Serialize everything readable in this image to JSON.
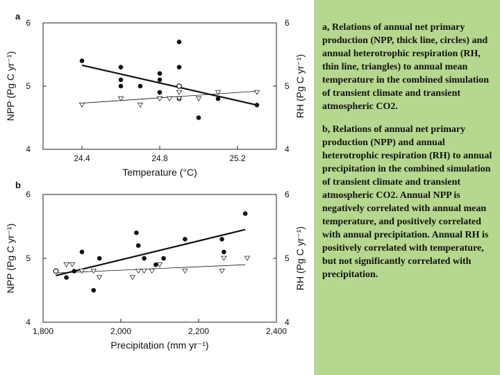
{
  "caption": {
    "paragraph_a": "a, Relations of annual net primary production (NPP, thick line, circles) and annual heterotrophic respiration (RH, thin line, triangles) to annual mean temperature in the combined simulation of transient climate and transient atmospheric CO2.",
    "paragraph_b": "b, Relations of annual net primary production (NPP) and annual heterotrophic respiration (RH) to annual precipitation in the combined simulation of transient climate and transient atmospheric CO2. Annual NPP is negatively correlated with annual mean temperature, and positively correlated with annual precipitation. Annual RH is positively correlated with temperature, but not significantly correlated with precipitation."
  },
  "chart_data": [
    {
      "type": "scatter",
      "panel_label": "a",
      "xlabel": "Temperature (°C)",
      "ylabel_left": "NPP (Pg C yr⁻¹)",
      "ylabel_right": "RH (Pg C yr⁻¹)",
      "xlim": [
        24.2,
        25.4
      ],
      "ylim": [
        4,
        6
      ],
      "xticks": [
        24.4,
        24.8,
        25.2
      ],
      "yticks": [
        4,
        5,
        6
      ],
      "series": [
        {
          "name": "NPP",
          "marker": "filled-circle",
          "points": [
            [
              24.4,
              5.4
            ],
            [
              24.6,
              5.3
            ],
            [
              24.6,
              5.1
            ],
            [
              24.6,
              5.0
            ],
            [
              24.7,
              5.0
            ],
            [
              24.8,
              5.2
            ],
            [
              24.8,
              5.1
            ],
            [
              24.8,
              4.9
            ],
            [
              24.9,
              5.7
            ],
            [
              24.9,
              5.3
            ],
            [
              24.9,
              4.8
            ],
            [
              25.0,
              4.5
            ],
            [
              25.1,
              4.8
            ],
            [
              25.3,
              4.7
            ]
          ],
          "trend": [
            [
              24.4,
              5.33
            ],
            [
              25.3,
              4.7
            ]
          ]
        },
        {
          "name": "RH",
          "marker": "open-triangle",
          "points": [
            [
              24.4,
              4.7
            ],
            [
              24.6,
              4.8
            ],
            [
              24.7,
              4.7
            ],
            [
              24.8,
              4.8
            ],
            [
              24.85,
              4.8
            ],
            [
              24.9,
              4.9
            ],
            [
              24.9,
              4.8
            ],
            [
              25.0,
              4.8
            ],
            [
              25.1,
              4.9
            ],
            [
              25.3,
              4.9
            ]
          ],
          "trend": [
            [
              24.4,
              4.73
            ],
            [
              25.3,
              4.92
            ]
          ]
        }
      ],
      "overlap_points": [
        [
          24.9,
          5.0
        ]
      ]
    },
    {
      "type": "scatter",
      "panel_label": "b",
      "xlabel": "Precipitation (mm yr⁻¹)",
      "ylabel_left": "NPP (Pg C yr⁻¹)",
      "ylabel_right": "RH (Pg C yr⁻¹)",
      "xlim": [
        1800,
        2400
      ],
      "ylim": [
        4,
        6
      ],
      "xticks": [
        1800,
        2000,
        2200,
        2400
      ],
      "xtick_labels": [
        "1,800",
        "2,000",
        "2,200",
        "2,400"
      ],
      "yticks": [
        4,
        5,
        6
      ],
      "series": [
        {
          "name": "NPP",
          "marker": "filled-circle",
          "points": [
            [
              1833,
              4.8
            ],
            [
              1860,
              4.7
            ],
            [
              1880,
              4.8
            ],
            [
              1900,
              5.1
            ],
            [
              1930,
              4.5
            ],
            [
              1945,
              5.0
            ],
            [
              2040,
              5.4
            ],
            [
              2045,
              5.2
            ],
            [
              2060,
              5.0
            ],
            [
              2090,
              4.9
            ],
            [
              2110,
              5.0
            ],
            [
              2165,
              5.3
            ],
            [
              2260,
              5.3
            ],
            [
              2265,
              5.1
            ],
            [
              2320,
              5.7
            ]
          ],
          "trend": [
            [
              1833,
              4.73
            ],
            [
              2320,
              5.45
            ]
          ]
        },
        {
          "name": "RH",
          "marker": "open-triangle",
          "points": [
            [
              1860,
              4.9
            ],
            [
              1875,
              4.9
            ],
            [
              1900,
              4.8
            ],
            [
              1930,
              4.8
            ],
            [
              1945,
              4.7
            ],
            [
              2030,
              4.7
            ],
            [
              2045,
              4.8
            ],
            [
              2060,
              4.8
            ],
            [
              2080,
              4.8
            ],
            [
              2100,
              4.9
            ],
            [
              2165,
              4.8
            ],
            [
              2260,
              4.8
            ],
            [
              2265,
              5.0
            ],
            [
              2325,
              5.0
            ]
          ],
          "trend": [
            [
              1833,
              4.77
            ],
            [
              2320,
              4.9
            ]
          ]
        }
      ],
      "overlap_points": [
        [
          1833,
          4.8
        ]
      ]
    }
  ]
}
